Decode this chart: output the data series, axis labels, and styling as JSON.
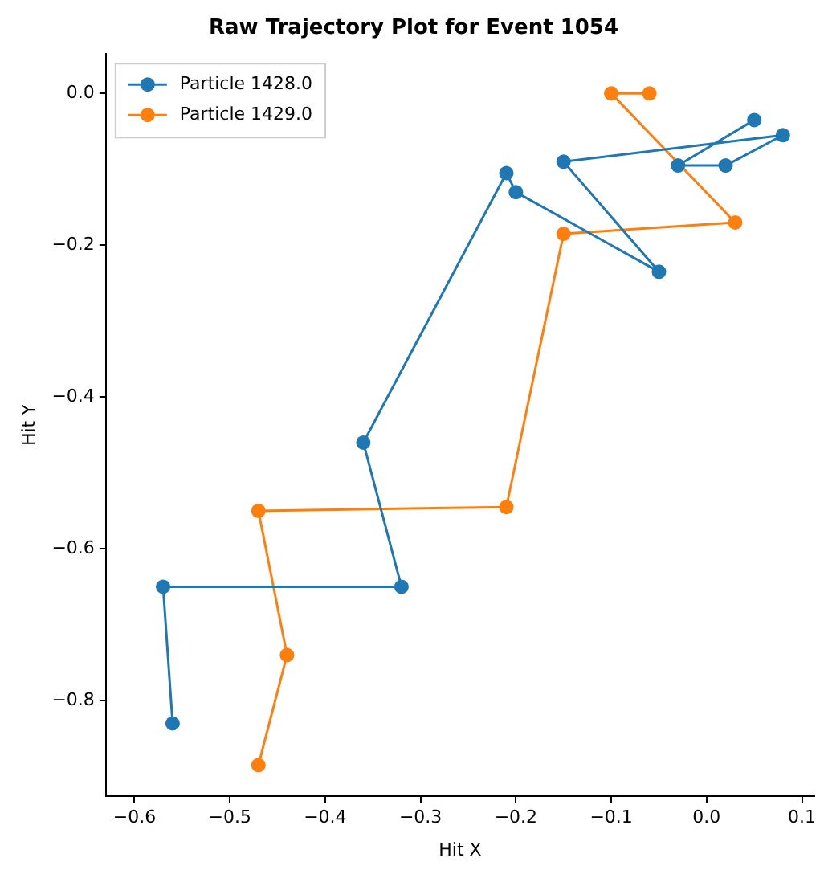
{
  "chart_data": {
    "type": "line",
    "title": "Raw Trajectory Plot for Event 1054",
    "xlabel": "Hit X",
    "ylabel": "Hit Y",
    "marker": "circle",
    "line_style": "solid",
    "legend": "top left",
    "grid": false,
    "xlim": [
      -0.63,
      0.113
    ],
    "ylim": [
      -0.926,
      0.052
    ],
    "xticks": [
      {
        "value": -0.6,
        "label": "−0.6"
      },
      {
        "value": -0.5,
        "label": "−0.5"
      },
      {
        "value": -0.4,
        "label": "−0.4"
      },
      {
        "value": -0.3,
        "label": "−0.3"
      },
      {
        "value": -0.2,
        "label": "−0.2"
      },
      {
        "value": -0.1,
        "label": "−0.1"
      },
      {
        "value": 0,
        "label": "0.0"
      },
      {
        "value": 0.1,
        "label": "0.1"
      }
    ],
    "yticks": [
      {
        "value": -0.8,
        "label": "−0.8"
      },
      {
        "value": -0.6,
        "label": "−0.6"
      },
      {
        "value": -0.4,
        "label": "−0.4"
      },
      {
        "value": -0.2,
        "label": "−0.2"
      },
      {
        "value": 0,
        "label": "0.0"
      }
    ],
    "series": [
      {
        "name": "Particle 1428.0",
        "color": "#1f77b4",
        "x": [
          -0.56,
          -0.57,
          -0.32,
          -0.36,
          -0.21,
          -0.2,
          -0.05,
          -0.15,
          0.08,
          0.02,
          -0.03,
          0.05
        ],
        "values": [
          -0.83,
          -0.65,
          -0.65,
          -0.46,
          -0.105,
          -0.13,
          -0.235,
          -0.09,
          -0.055,
          -0.095,
          -0.095,
          -0.035
        ]
      },
      {
        "name": "Particle 1429.0",
        "color": "#ff7f0e",
        "x": [
          -0.47,
          -0.44,
          -0.47,
          -0.21,
          -0.15,
          0.03,
          -0.1,
          -0.06
        ],
        "values": [
          -0.885,
          -0.74,
          -0.55,
          -0.545,
          -0.185,
          -0.17,
          0.0,
          0.0
        ]
      }
    ]
  }
}
